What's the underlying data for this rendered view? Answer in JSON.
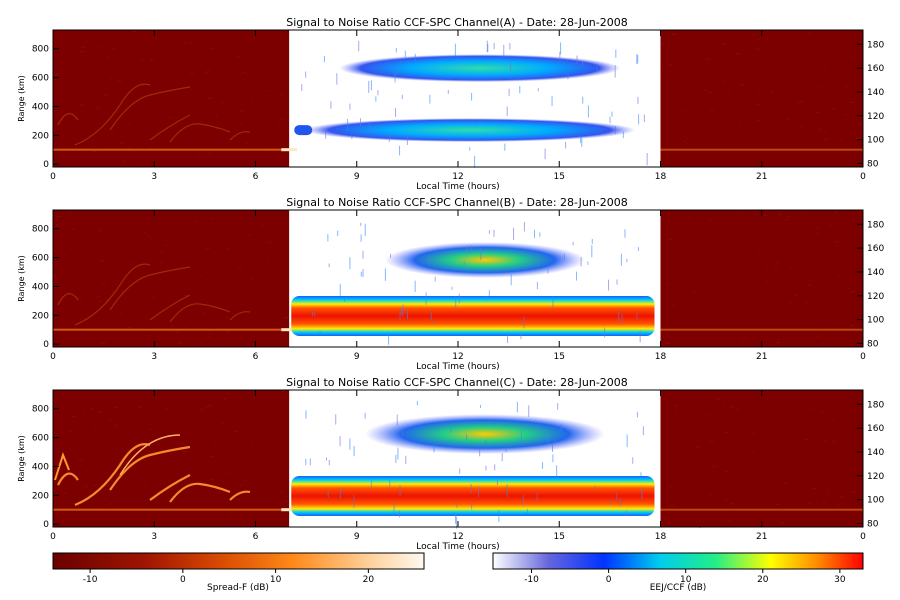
{
  "panels": [
    {
      "title": "Signal to Noise Ratio CCF-SPC Channel(A) - Date: 28-Jun-2008",
      "band": "A"
    },
    {
      "title": "Signal to Noise Ratio CCF-SPC Channel(B) - Date: 28-Jun-2008",
      "band": "B"
    },
    {
      "title": "Signal to Noise Ratio CCF-SPC Channel(C) - Date: 28-Jun-2008",
      "band": "C"
    }
  ],
  "axes": {
    "xlabel": "Local Time (hours)",
    "ylabel": "Range (km)",
    "x_ticks": [
      "0",
      "3",
      "6",
      "9",
      "12",
      "15",
      "18",
      "21",
      "0"
    ],
    "y_ticks": [
      "0",
      "200",
      "400",
      "600",
      "800"
    ],
    "y2_ticks": [
      "80",
      "100",
      "120",
      "140",
      "160",
      "180"
    ],
    "xlim": [
      0,
      24
    ],
    "ylim_km": [
      -20,
      930
    ],
    "y2lim": [
      77,
      192
    ]
  },
  "colorbars": [
    {
      "label": "Spread-F (dB)",
      "ticks": [
        "-10",
        "0",
        "10",
        "20"
      ],
      "range": [
        -14,
        26
      ]
    },
    {
      "label": "EEJ/CCF (dB)",
      "ticks": [
        "-10",
        "0",
        "10",
        "20",
        "30"
      ],
      "range": [
        -15,
        33
      ]
    }
  ],
  "chart_data": [
    {
      "type": "heatmap",
      "title": "Signal to Noise Ratio CCF-SPC Channel(A) - Date: 28-Jun-2008",
      "xlabel": "Local Time (hours)",
      "ylabel": "Range (km)",
      "xlim": [
        0,
        24
      ],
      "night_window_hours": [
        [
          0,
          7
        ],
        [
          18,
          24
        ]
      ],
      "day_window_hours": [
        7,
        18
      ],
      "night_background_db": -12,
      "night_features": [
        {
          "t_start": 0,
          "t_end": 24,
          "range_km": 100,
          "snr_db": 8,
          "desc": "persistent horizontal echo"
        },
        {
          "t_start": 0,
          "t_end": 4,
          "range_km": 300,
          "snr_db": 2
        }
      ],
      "day_features": [
        {
          "t_start": 7.5,
          "t_end": 17.5,
          "height_km": 108,
          "snr_db": 5
        },
        {
          "t_start": 8.0,
          "t_end": 17.0,
          "height_km": 160,
          "snr_db": 5
        }
      ]
    },
    {
      "type": "heatmap",
      "title": "Signal to Noise Ratio CCF-SPC Channel(B) - Date: 28-Jun-2008",
      "xlabel": "Local Time (hours)",
      "ylabel": "Range (km)",
      "xlim": [
        0,
        24
      ],
      "night_window_hours": [
        [
          0,
          7
        ],
        [
          18,
          24
        ]
      ],
      "day_window_hours": [
        7,
        18
      ],
      "night_background_db": -12,
      "night_features": [
        {
          "t_start": 0,
          "t_end": 24,
          "range_km": 100,
          "snr_db": 8
        },
        {
          "t_start": 0,
          "t_end": 4,
          "range_km": 300,
          "snr_db": 0
        }
      ],
      "day_features": [
        {
          "t_start": 7.0,
          "t_end": 18.0,
          "height_km": 103,
          "snr_db": 30
        },
        {
          "t_start": 10.5,
          "t_end": 16.0,
          "height_km": 150,
          "snr_db": 3
        }
      ]
    },
    {
      "type": "heatmap",
      "title": "Signal to Noise Ratio CCF-SPC Channel(C) - Date: 28-Jun-2008",
      "xlabel": "Local Time (hours)",
      "ylabel": "Range (km)",
      "xlim": [
        0,
        24
      ],
      "night_window_hours": [
        [
          0,
          7
        ],
        [
          18,
          24
        ]
      ],
      "day_window_hours": [
        7,
        18
      ],
      "night_background_db": -12,
      "night_features": [
        {
          "t_start": 0,
          "t_end": 24,
          "range_km": 100,
          "snr_db": 10
        },
        {
          "t_start": 0,
          "t_end": 6,
          "range_km": 300,
          "snr_db": 10,
          "desc": "spread-F plumes"
        }
      ],
      "day_features": [
        {
          "t_start": 7.0,
          "t_end": 18.0,
          "height_km": 103,
          "snr_db": 32
        },
        {
          "t_start": 10.0,
          "t_end": 17.0,
          "height_km": 155,
          "snr_db": 8
        }
      ]
    }
  ],
  "colors": {
    "night_background": "#7d0000",
    "day_background": "#ffffff"
  }
}
